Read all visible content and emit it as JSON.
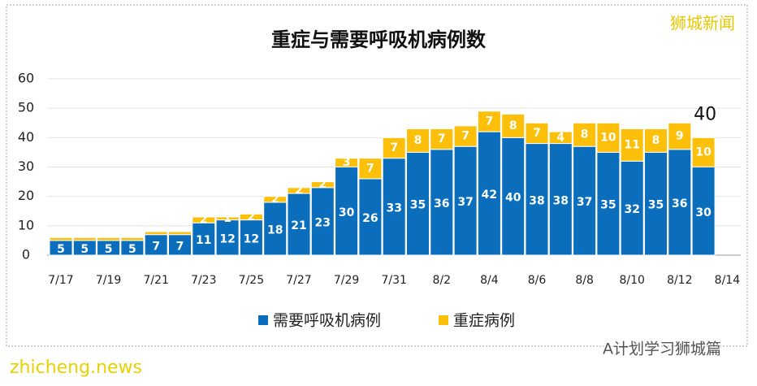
{
  "chart_data": {
    "type": "bar",
    "stacked": true,
    "title": "重症与需要呼吸机病例数",
    "categories": [
      "7/17",
      null,
      "7/19",
      null,
      "7/21",
      null,
      "7/23",
      null,
      "7/25",
      null,
      "7/27",
      null,
      "7/29",
      null,
      "7/31",
      null,
      "8/2",
      null,
      "8/4",
      null,
      "8/6",
      null,
      "8/8",
      null,
      "8/10",
      null,
      "8/12",
      null,
      "8/14"
    ],
    "series": [
      {
        "name": "需要呼吸机病例",
        "color": "#0a6ebd",
        "values": [
          5,
          5,
          5,
          5,
          7,
          7,
          11,
          12,
          12,
          18,
          21,
          23,
          30,
          26,
          33,
          35,
          36,
          37,
          42,
          40,
          38,
          38,
          37,
          35,
          32,
          35,
          36,
          30,
          null
        ]
      },
      {
        "name": "重症病例",
        "color": "#fcc00a",
        "values": [
          1,
          1,
          1,
          1,
          1,
          1,
          2,
          1,
          2,
          2,
          2,
          2,
          3,
          7,
          7,
          8,
          7,
          7,
          7,
          8,
          7,
          4,
          8,
          10,
          11,
          8,
          9,
          10,
          null
        ],
        "value_labels": [
          null,
          null,
          null,
          null,
          null,
          null,
          "2",
          "1",
          "2",
          "2",
          "2",
          "2",
          "3",
          "7",
          "7",
          "8",
          "7",
          "7",
          "7",
          "8",
          "7",
          "4",
          "8",
          "10",
          "11",
          "8",
          "9",
          "10",
          null
        ]
      }
    ],
    "ylim": [
      0,
      60
    ],
    "yticks": [
      0,
      10,
      20,
      30,
      40,
      50,
      60
    ],
    "grid": true,
    "annotations": [
      {
        "text": "40",
        "index": 27,
        "value": 40
      }
    ]
  },
  "watermarks": {
    "top_right": "狮城新闻",
    "bottom_right": "A计划学习狮城篇",
    "bottom_left": "zhicheng.news"
  }
}
